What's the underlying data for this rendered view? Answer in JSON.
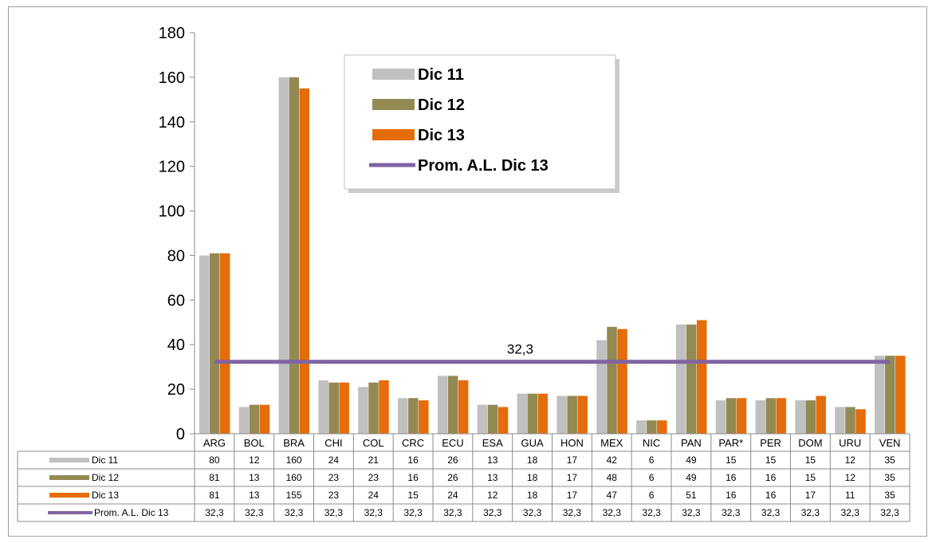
{
  "chart_data": {
    "type": "bar",
    "categories": [
      "ARG",
      "BOL",
      "BRA",
      "CHI",
      "COL",
      "CRC",
      "ECU",
      "ESA",
      "GUA",
      "HON",
      "MEX",
      "NIC",
      "PAN",
      "PAR*",
      "PER",
      "DOM",
      "URU",
      "VEN"
    ],
    "series": [
      {
        "name": "Dic 11",
        "color": "#c0c0c0",
        "values": [
          80,
          12,
          160,
          24,
          21,
          16,
          26,
          13,
          18,
          17,
          42,
          6,
          49,
          15,
          15,
          15,
          12,
          35
        ]
      },
      {
        "name": "Dic 12",
        "color": "#938953",
        "values": [
          81,
          13,
          160,
          23,
          23,
          16,
          26,
          13,
          18,
          17,
          48,
          6,
          49,
          16,
          16,
          15,
          12,
          35
        ]
      },
      {
        "name": "Dic 13",
        "color": "#e46c0a",
        "values": [
          81,
          13,
          155,
          23,
          24,
          15,
          24,
          12,
          18,
          17,
          47,
          6,
          51,
          16,
          16,
          17,
          11,
          35
        ]
      }
    ],
    "line_series": {
      "name": "Prom. A.L. Dic 13",
      "color": "#8064a2",
      "value": 32.3,
      "label": "32,3",
      "table_values": [
        "32,3",
        "32,3",
        "32,3",
        "32,3",
        "32,3",
        "32,3",
        "32,3",
        "32,3",
        "32,3",
        "32,3",
        "32,3",
        "32,3",
        "32,3",
        "32,3",
        "32,3",
        "32,3",
        "32,3",
        "32,3"
      ]
    },
    "yticks": [
      "0",
      "20",
      "40",
      "60",
      "80",
      "100",
      "120",
      "140",
      "160",
      "180"
    ],
    "ylim": [
      0,
      180
    ],
    "grid": false,
    "legend_position": "top-center",
    "data_table": true
  }
}
